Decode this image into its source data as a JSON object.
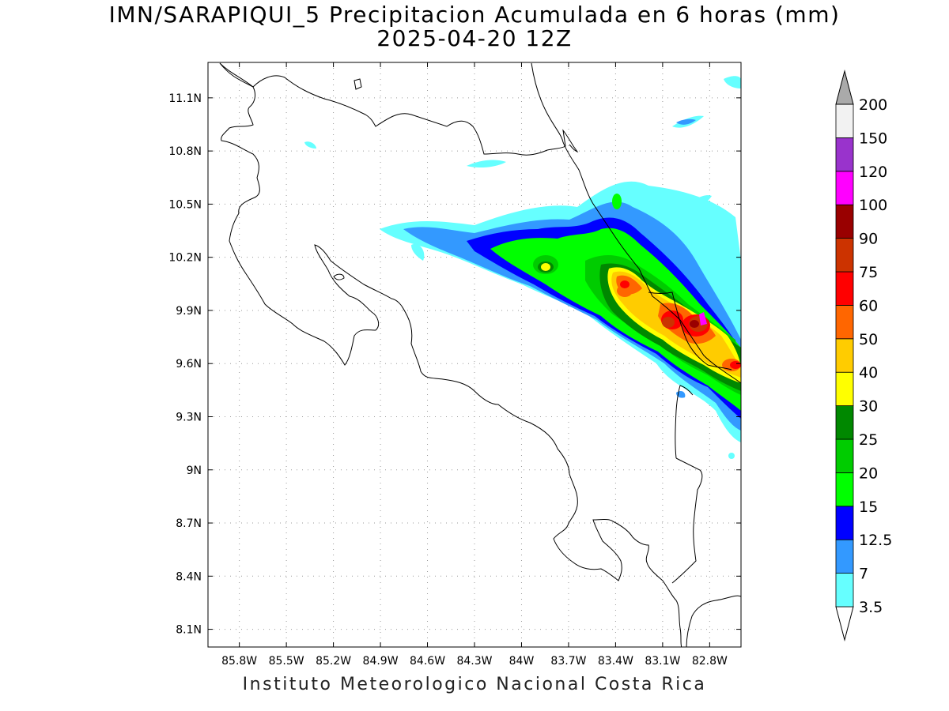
{
  "title": "IMN/SARAPIQUI_5 Precipitacion Acumulada en 6 horas (mm)",
  "subtitle": "2025-04-20 12Z",
  "footer": "Instituto Meteorologico Nacional Costa Rica",
  "map": {
    "lon_range": [
      -86.0,
      -82.6
    ],
    "lat_range": [
      8.0,
      11.3
    ],
    "x_ticks": [
      "85.8W",
      "85.5W",
      "85.2W",
      "84.9W",
      "84.6W",
      "84.3W",
      "84W",
      "83.7W",
      "83.4W",
      "83.1W",
      "82.8W"
    ],
    "x_tick_values": [
      -85.8,
      -85.5,
      -85.2,
      -84.9,
      -84.6,
      -84.3,
      -84.0,
      -83.7,
      -83.4,
      -83.1,
      -82.8
    ],
    "y_ticks": [
      "11.1N",
      "10.8N",
      "10.5N",
      "10.2N",
      "9.9N",
      "9.6N",
      "9.3N",
      "9N",
      "8.7N",
      "8.4N",
      "8.1N"
    ],
    "y_tick_values": [
      11.1,
      10.8,
      10.5,
      10.2,
      9.9,
      9.6,
      9.3,
      9.0,
      8.7,
      8.4,
      8.1
    ],
    "grid": "dotted"
  },
  "colorbar": {
    "labels": [
      "3.5",
      "7",
      "12.5",
      "15",
      "20",
      "25",
      "30",
      "40",
      "50",
      "60",
      "75",
      "90",
      "100",
      "120",
      "150",
      "200"
    ],
    "colors": [
      "#ffffff",
      "#66ffff",
      "#3399ff",
      "#0000ff",
      "#00ff00",
      "#00cc00",
      "#008800",
      "#ffff00",
      "#ffcc00",
      "#ff6600",
      "#ff0000",
      "#cc3300",
      "#990000",
      "#ff00ff",
      "#9933cc",
      "#f2f2f2",
      "#aaaaaa"
    ]
  },
  "precip_colors": {
    "c35": "#66ffff",
    "c7": "#3399ff",
    "c125": "#0000ff",
    "c15": "#00ff00",
    "c20": "#00cc00",
    "c25": "#008800",
    "c30": "#ffff00",
    "c40": "#ffcc00",
    "c50": "#ff6600",
    "c60": "#ff0000",
    "c75": "#cc3300",
    "c90": "#990000",
    "c100": "#ff00ff"
  }
}
